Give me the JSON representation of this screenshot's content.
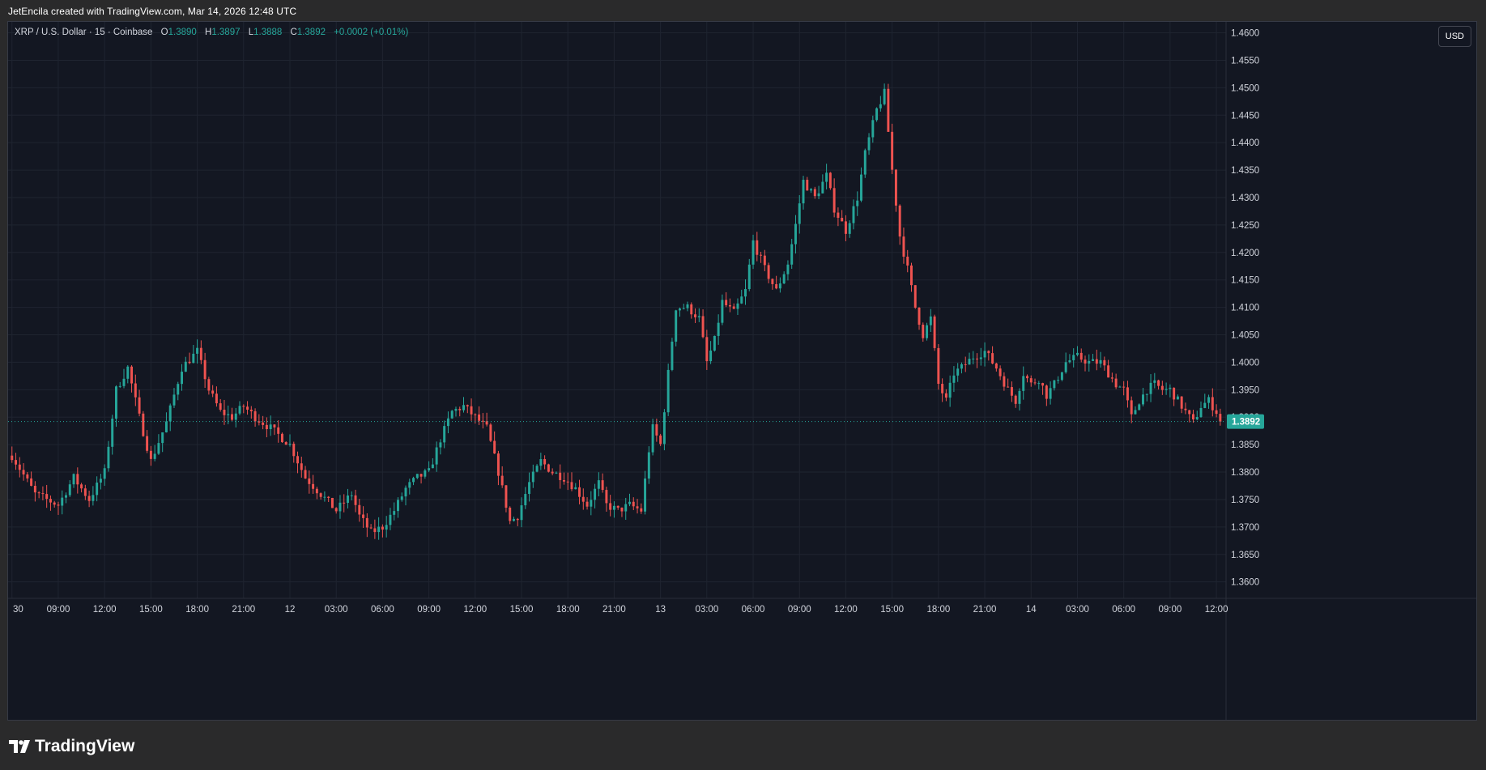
{
  "caption": "JetEncila created with TradingView.com, Mar 14, 2026 12:48 UTC",
  "legend": {
    "symbol": "XRP / U.S. Dollar · 15 · Coinbase",
    "o_label": "O",
    "o_value": "1.3890",
    "h_label": "H",
    "h_value": "1.3897",
    "l_label": "L",
    "l_value": "1.3888",
    "c_label": "C",
    "c_value": "1.3892",
    "change": "+0.0002 (+0.01%)"
  },
  "currency_button": "USD",
  "brand_name": "TradingView",
  "colors": {
    "background": "#131722",
    "up": "#26a69a",
    "down": "#ef5350",
    "grid": "#1f2430",
    "axis_text": "#d1d4dc",
    "price_tag": "#26a69a"
  },
  "chart_data": {
    "type": "candlestick",
    "symbol": "XRP / U.S. Dollar",
    "interval": "15",
    "exchange": "Coinbase",
    "last_price": 1.3892,
    "last_price_label": "1.3892",
    "y_axis": {
      "ticks": [
        1.36,
        1.365,
        1.37,
        1.375,
        1.38,
        1.385,
        1.39,
        1.395,
        1.4,
        1.405,
        1.41,
        1.415,
        1.42,
        1.425,
        1.43,
        1.435,
        1.44,
        1.445,
        1.45,
        1.455,
        1.46
      ],
      "tick_labels": [
        "1.3600",
        "1.3650",
        "1.3700",
        "1.3750",
        "1.3800",
        "1.3850",
        "1.3900",
        "1.3950",
        "1.4000",
        "1.4050",
        "1.4100",
        "1.4150",
        "1.4200",
        "1.4250",
        "1.4300",
        "1.4350",
        "1.4400",
        "1.4450",
        "1.4500",
        "1.4550",
        "1.4600"
      ],
      "range": [
        1.357,
        1.462
      ]
    },
    "x_axis": {
      "tick_labels": [
        "30",
        "09:00",
        "12:00",
        "15:00",
        "18:00",
        "21:00",
        "12",
        "03:00",
        "06:00",
        "09:00",
        "12:00",
        "15:00",
        "18:00",
        "21:00",
        "13",
        "03:00",
        "06:00",
        "09:00",
        "12:00",
        "15:00",
        "18:00",
        "21:00",
        "14",
        "03:00",
        "06:00",
        "09:00",
        "12:00"
      ],
      "tick_bar_index": [
        0,
        12,
        24,
        36,
        48,
        60,
        72,
        84,
        96,
        108,
        120,
        132,
        144,
        156,
        168,
        180,
        192,
        204,
        216,
        228,
        240,
        252,
        264,
        276,
        288,
        300,
        312
      ],
      "bar_range": [
        -1.0,
        314.5
      ]
    },
    "anchors": [
      [
        0,
        1.383
      ],
      [
        6,
        1.376
      ],
      [
        12,
        1.374
      ],
      [
        16,
        1.379
      ],
      [
        20,
        1.375
      ],
      [
        24,
        1.38
      ],
      [
        27,
        1.395
      ],
      [
        30,
        1.399
      ],
      [
        33,
        1.39
      ],
      [
        36,
        1.382
      ],
      [
        40,
        1.389
      ],
      [
        44,
        1.399
      ],
      [
        48,
        1.402
      ],
      [
        51,
        1.395
      ],
      [
        54,
        1.391
      ],
      [
        57,
        1.39
      ],
      [
        60,
        1.392
      ],
      [
        63,
        1.39
      ],
      [
        67,
        1.388
      ],
      [
        72,
        1.385
      ],
      [
        76,
        1.379
      ],
      [
        80,
        1.376
      ],
      [
        84,
        1.373
      ],
      [
        88,
        1.376
      ],
      [
        90,
        1.372
      ],
      [
        93,
        1.369
      ],
      [
        96,
        1.37
      ],
      [
        99,
        1.373
      ],
      [
        102,
        1.377
      ],
      [
        105,
        1.379
      ],
      [
        108,
        1.38
      ],
      [
        111,
        1.386
      ],
      [
        114,
        1.391
      ],
      [
        117,
        1.392
      ],
      [
        120,
        1.39
      ],
      [
        123,
        1.388
      ],
      [
        126,
        1.38
      ],
      [
        129,
        1.371
      ],
      [
        131,
        1.372
      ],
      [
        134,
        1.378
      ],
      [
        137,
        1.382
      ],
      [
        140,
        1.38
      ],
      [
        143,
        1.379
      ],
      [
        146,
        1.377
      ],
      [
        149,
        1.374
      ],
      [
        152,
        1.378
      ],
      [
        154,
        1.374
      ],
      [
        157,
        1.373
      ],
      [
        160,
        1.374
      ],
      [
        163,
        1.373
      ],
      [
        165,
        1.384
      ],
      [
        166,
        1.388
      ],
      [
        168,
        1.385
      ],
      [
        170,
        1.398
      ],
      [
        172,
        1.41
      ],
      [
        175,
        1.41
      ],
      [
        178,
        1.408
      ],
      [
        180,
        1.4
      ],
      [
        182,
        1.404
      ],
      [
        184,
        1.411
      ],
      [
        187,
        1.409
      ],
      [
        190,
        1.413
      ],
      [
        192,
        1.422
      ],
      [
        195,
        1.417
      ],
      [
        198,
        1.413
      ],
      [
        201,
        1.418
      ],
      [
        203,
        1.425
      ],
      [
        205,
        1.433
      ],
      [
        208,
        1.43
      ],
      [
        211,
        1.434
      ],
      [
        213,
        1.428
      ],
      [
        216,
        1.424
      ],
      [
        219,
        1.43
      ],
      [
        221,
        1.438
      ],
      [
        224,
        1.446
      ],
      [
        226,
        1.449
      ],
      [
        228,
        1.435
      ],
      [
        230,
        1.423
      ],
      [
        232,
        1.417
      ],
      [
        234,
        1.41
      ],
      [
        236,
        1.405
      ],
      [
        238,
        1.408
      ],
      [
        240,
        1.396
      ],
      [
        242,
        1.393
      ],
      [
        244,
        1.398
      ],
      [
        246,
        1.399
      ],
      [
        249,
        1.401
      ],
      [
        252,
        1.402
      ],
      [
        255,
        1.399
      ],
      [
        258,
        1.395
      ],
      [
        260,
        1.393
      ],
      [
        262,
        1.398
      ],
      [
        264,
        1.396
      ],
      [
        266,
        1.397
      ],
      [
        268,
        1.394
      ],
      [
        270,
        1.396
      ],
      [
        273,
        1.4
      ],
      [
        276,
        1.401
      ],
      [
        279,
        1.4
      ],
      [
        282,
        1.4
      ],
      [
        284,
        1.398
      ],
      [
        286,
        1.396
      ],
      [
        288,
        1.395
      ],
      [
        290,
        1.39
      ],
      [
        292,
        1.393
      ],
      [
        294,
        1.395
      ],
      [
        296,
        1.396
      ],
      [
        298,
        1.395
      ],
      [
        300,
        1.395
      ],
      [
        302,
        1.393
      ],
      [
        304,
        1.391
      ],
      [
        306,
        1.389
      ],
      [
        308,
        1.392
      ],
      [
        310,
        1.393
      ],
      [
        312,
        1.391
      ],
      [
        313,
        1.3892
      ]
    ]
  }
}
